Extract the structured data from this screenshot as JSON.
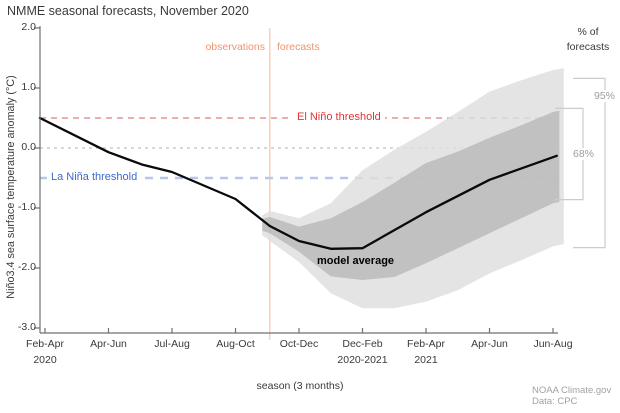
{
  "title": "NMME seasonal forecasts, November 2020",
  "annotations": {
    "observations": "observations",
    "forecasts": "forecasts",
    "el_nino": "El Niño threshold",
    "la_nina": "La Niña threshold",
    "model_average": "model average",
    "pct_line1": "% of",
    "pct_line2": "forecasts",
    "bracket95": "95%",
    "bracket68": "68%",
    "attribution_line1": "NOAA Climate.gov",
    "attribution_line2": "Data: CPC"
  },
  "colors": {
    "title_text": "#3a3a3a",
    "axis": "#707070",
    "divider": "#f7cdb2",
    "obs_fct_text": "#f0926f",
    "el_nino_label": "#e03535",
    "el_nino_dash": "#dd8080",
    "la_nina_label": "#3e68cd",
    "la_nina_dash": "#b9c6ea",
    "zero_dash": "#b0b0b0",
    "band68": "#b9b9b9",
    "band95": "#dedede",
    "model_line": "#0a0a0a",
    "bracket": "#cccccc"
  },
  "chart_data": {
    "type": "line",
    "title": "NMME seasonal forecasts, November 2020",
    "xlabel": "season (3 months)",
    "ylabel": "Niño3.4 sea surface temperature anomaly (°C)",
    "ylim": [
      -3.0,
      2.0
    ],
    "yticks": [
      "2.0",
      "1.0",
      "0.0",
      "-1.0",
      "-2.0",
      "-3.0"
    ],
    "ytick_values": [
      2.0,
      1.0,
      0.0,
      -1.0,
      -2.0,
      -3.0
    ],
    "grid": "off",
    "categories": [
      "Feb-Apr",
      "Apr-Jun",
      "Jul-Aug",
      "Aug-Oct",
      "Oct-Dec",
      "Dec-Feb",
      "Feb-Apr",
      "Apr-Jun",
      "Jun-Aug"
    ],
    "year_labels": [
      {
        "index": 0,
        "label": "2020"
      },
      {
        "index": 5,
        "label": "2020-2021"
      },
      {
        "index": 6,
        "label": "2021"
      }
    ],
    "el_nino_threshold": 0.5,
    "la_nina_threshold": -0.5,
    "observation_forecast_boundary_index": 3.54,
    "series": [
      {
        "name": "model average",
        "type": "line",
        "x": [
          -0.08,
          1.0,
          1.54,
          2.0,
          3.0,
          3.54,
          4.0,
          4.5,
          5.0,
          6.0,
          7.0,
          8.06
        ],
        "y": [
          0.5,
          -0.07,
          -0.28,
          -0.4,
          -0.85,
          -1.3,
          -1.55,
          -1.68,
          -1.67,
          -1.07,
          -0.53,
          -0.13
        ]
      },
      {
        "name": "68% of forecasts",
        "type": "band",
        "x": [
          3.42,
          3.54,
          4.0,
          4.5,
          5.0,
          5.5,
          6.0,
          6.5,
          7.0,
          7.5,
          8.0,
          8.1
        ],
        "hi": [
          -1.18,
          -1.15,
          -1.31,
          -1.17,
          -0.9,
          -0.58,
          -0.25,
          -0.06,
          0.17,
          0.38,
          0.6,
          0.62
        ],
        "lo": [
          -1.38,
          -1.42,
          -1.73,
          -2.14,
          -2.2,
          -2.15,
          -1.92,
          -1.67,
          -1.42,
          -1.17,
          -0.92,
          -0.9
        ]
      },
      {
        "name": "95% of forecasts",
        "type": "band",
        "x": [
          3.42,
          3.54,
          4.0,
          4.5,
          5.0,
          5.5,
          6.0,
          6.5,
          7.0,
          7.5,
          8.0,
          8.17
        ],
        "hi": [
          -1.12,
          -1.05,
          -1.17,
          -0.92,
          -0.37,
          -0.03,
          0.27,
          0.6,
          0.94,
          1.13,
          1.3,
          1.33
        ],
        "lo": [
          -1.45,
          -1.55,
          -1.9,
          -2.42,
          -2.67,
          -2.67,
          -2.56,
          -2.37,
          -2.09,
          -1.87,
          -1.64,
          -1.6
        ]
      }
    ],
    "forecast_spread_brackets": [
      {
        "label": "95%",
        "hi": 1.16,
        "lo": -1.66
      },
      {
        "label": "68%",
        "hi": 0.66,
        "lo": -0.86
      }
    ],
    "legend_position": "right"
  }
}
